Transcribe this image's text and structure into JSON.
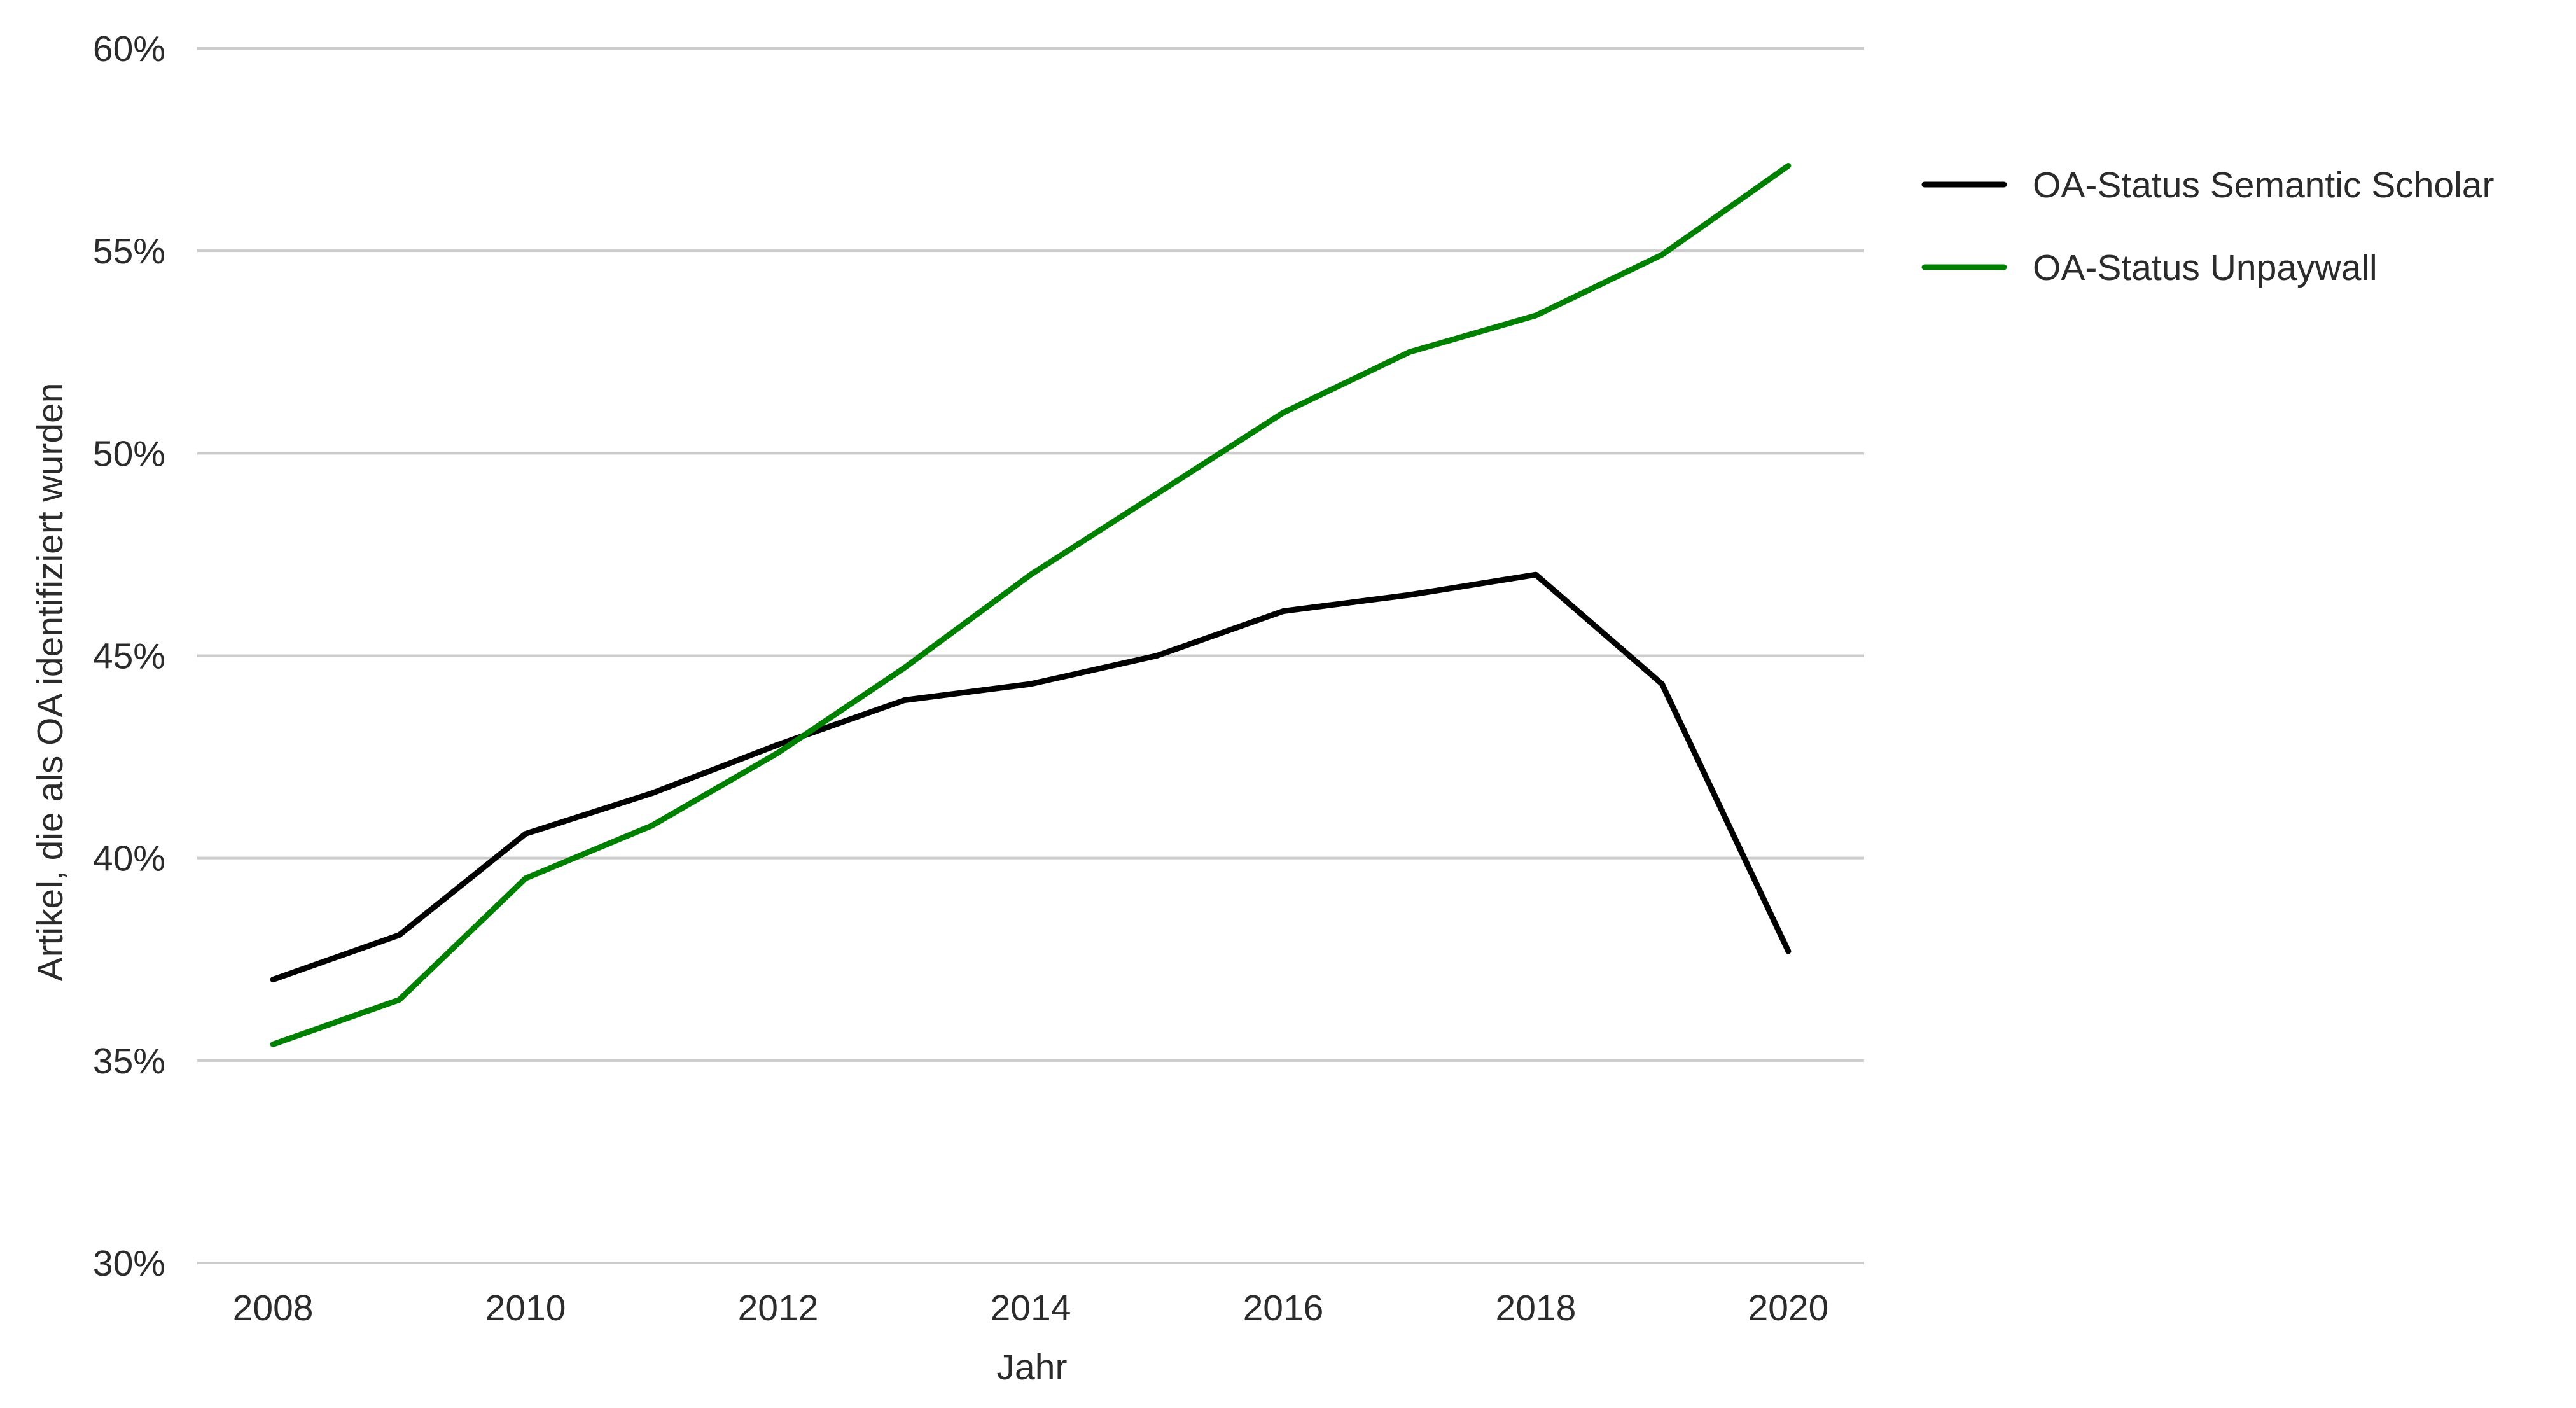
{
  "chart_data": {
    "type": "line",
    "title": "",
    "xlabel": "Jahr",
    "ylabel": "Artikel, die als OA identifiziert wurden",
    "x": [
      2008,
      2009,
      2010,
      2011,
      2012,
      2013,
      2014,
      2015,
      2016,
      2017,
      2018,
      2019,
      2020
    ],
    "x_ticks": [
      2008,
      2010,
      2012,
      2014,
      2016,
      2018,
      2020
    ],
    "x_tick_labels": [
      "2008",
      "2010",
      "2012",
      "2014",
      "2016",
      "2018",
      "2020"
    ],
    "xlim": [
      2007.4,
      2020.6
    ],
    "ylim": [
      30,
      60
    ],
    "y_ticks": [
      30,
      35,
      40,
      45,
      50,
      55,
      60
    ],
    "y_tick_labels": [
      "30%",
      "35%",
      "40%",
      "45%",
      "50%",
      "55%",
      "60%"
    ],
    "grid": "horizontal",
    "legend_position": "right",
    "series": [
      {
        "name": "OA-Status Semantic Scholar",
        "color": "#000000",
        "values": [
          37.0,
          38.1,
          40.6,
          41.6,
          42.8,
          43.9,
          44.3,
          45.0,
          46.1,
          46.5,
          47.0,
          44.3,
          37.7
        ]
      },
      {
        "name": "OA-Status Unpaywall",
        "color": "#008000",
        "values": [
          35.4,
          36.5,
          39.5,
          40.8,
          42.6,
          44.7,
          47.0,
          49.0,
          51.0,
          52.5,
          53.4,
          54.9,
          57.1
        ]
      }
    ]
  }
}
